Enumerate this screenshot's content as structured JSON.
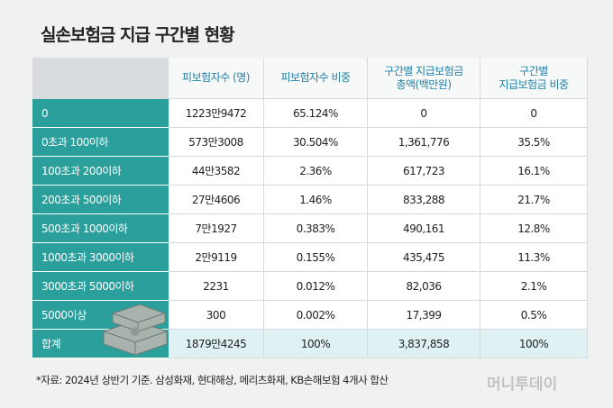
{
  "header": {
    "title": "실손보험금 지급 구간별 현황"
  },
  "table": {
    "columns": [
      "",
      "피보험자수 (명)",
      "피보험자수 비중",
      "구간별 지급보험금\n총액(백만원)",
      "구간별\n지급보험금 비중"
    ],
    "rows": [
      [
        "0",
        "1223만9472",
        "65.124%",
        "0",
        "0"
      ],
      [
        "0초과 100이하",
        "573만3008",
        "30.504%",
        "1,361,776",
        "35.5%"
      ],
      [
        "100초과 200이하",
        "44만3582",
        "2.36%",
        "617,723",
        "16.1%"
      ],
      [
        "200초과 500이하",
        "27만4606",
        "1.46%",
        "833,288",
        "21.7%"
      ],
      [
        "500초과 1000이하",
        "7만1927",
        "0.383%",
        "490,161",
        "12.8%"
      ],
      [
        "1000초과 3000이하",
        "2만9119",
        "0.155%",
        "435,475",
        "11.3%"
      ],
      [
        "3000초과 5000이하",
        "2231",
        "0.012%",
        "82,036",
        "2.1%"
      ],
      [
        "5000이상",
        "300",
        "0.002%",
        "17,399",
        "0.5%"
      ],
      [
        "합계",
        "1879만4245",
        "100%",
        "3,837,858",
        "100%"
      ]
    ]
  },
  "footnote": "*자료: 2024년 상반기 기준. 삼성화재, 현대해상, 메리츠화재, KB손해보험 4개사 합산",
  "watermark": "머니투데이"
}
